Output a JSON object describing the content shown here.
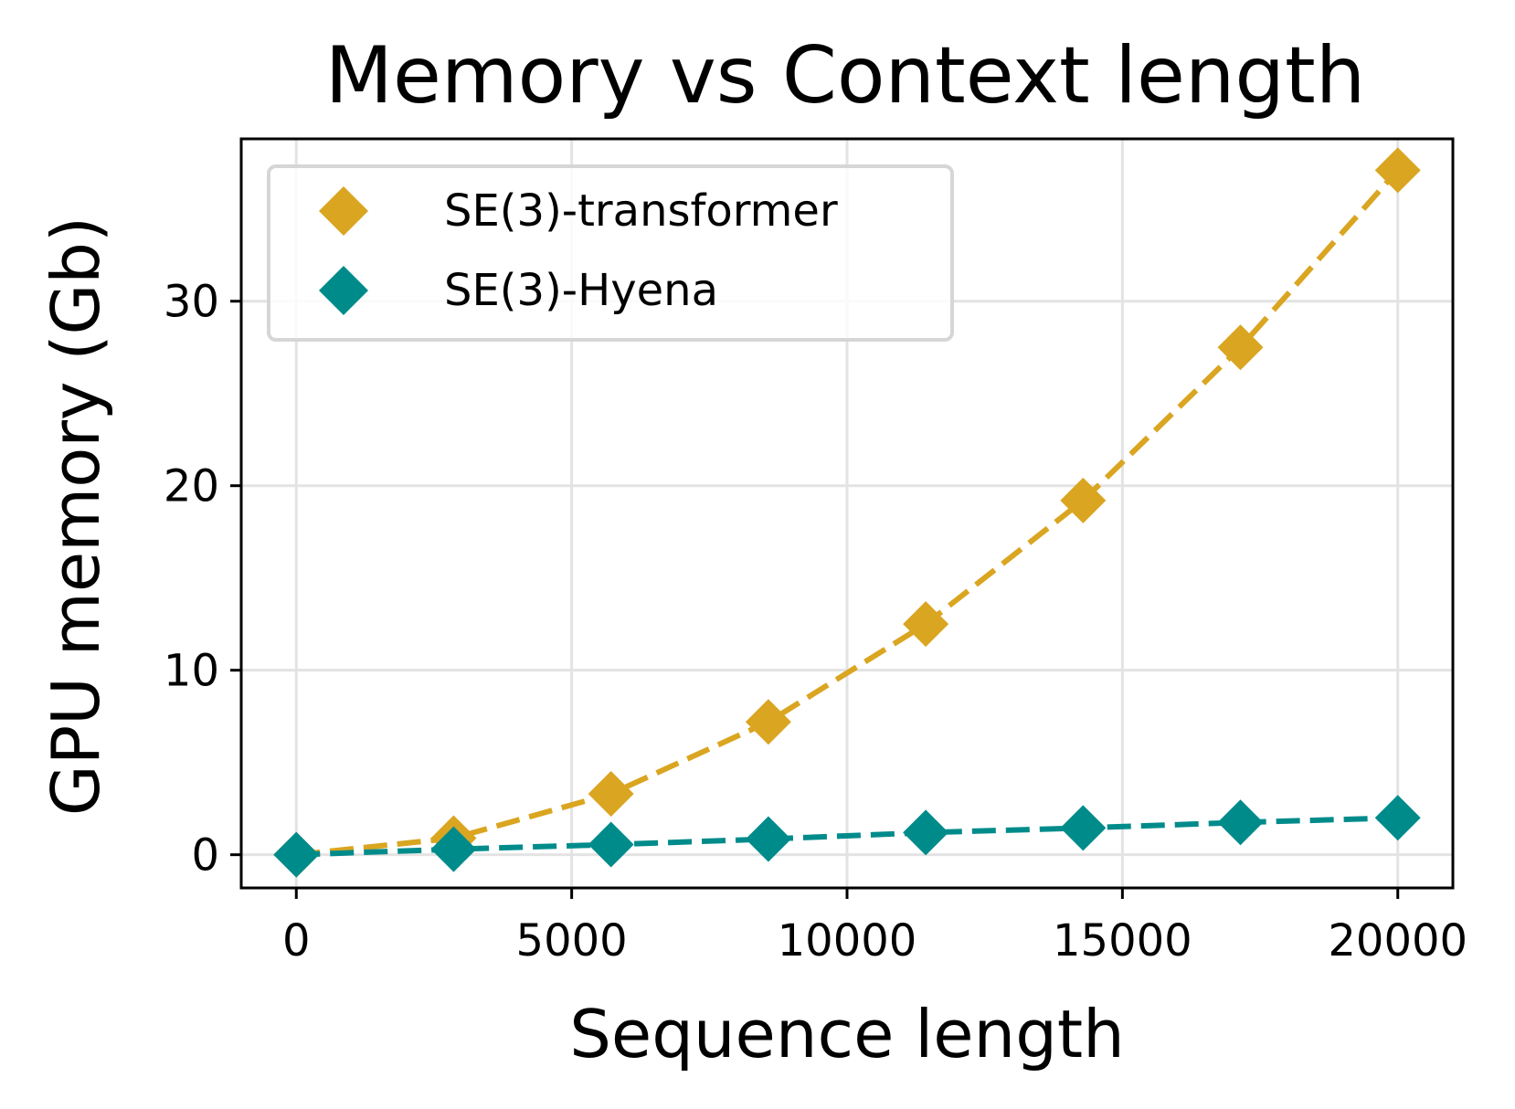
{
  "chart_data": {
    "type": "line",
    "title": "Memory vs Context length",
    "xlabel": "Sequence length",
    "ylabel": "GPU memory (Gb)",
    "xlim": [
      -1000,
      21000
    ],
    "ylim": [
      -1.8,
      38.8
    ],
    "xticks": [
      0,
      5000,
      10000,
      15000,
      20000
    ],
    "yticks": [
      0,
      10,
      20,
      30
    ],
    "grid": true,
    "legend_position": "top-left",
    "series": [
      {
        "name": "SE(3)-transformer",
        "color": "#DAA520",
        "marker": "diamond",
        "line_style": "dashed",
        "x": [
          0,
          2857,
          5714,
          8571,
          11429,
          14286,
          17143,
          20000
        ],
        "y": [
          0,
          0.9,
          3.3,
          7.2,
          12.5,
          19.2,
          27.5,
          37.1
        ]
      },
      {
        "name": "SE(3)-Hyena",
        "color": "#008B8B",
        "marker": "diamond",
        "line_style": "dashed",
        "x": [
          0,
          2857,
          5714,
          8571,
          11429,
          14286,
          17143,
          20000
        ],
        "y": [
          0,
          0.3,
          0.55,
          0.85,
          1.2,
          1.45,
          1.75,
          2.0
        ]
      }
    ]
  }
}
